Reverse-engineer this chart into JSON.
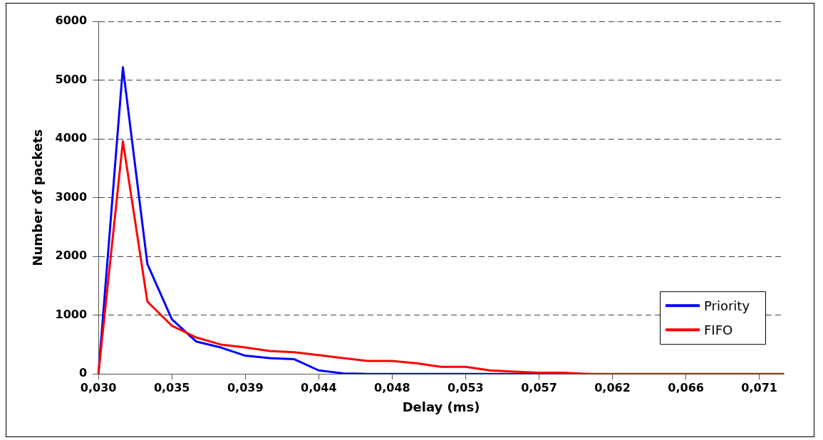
{
  "chart_data": {
    "type": "line",
    "xlabel": "Delay (ms)",
    "ylabel": "Number of packets",
    "categories": [
      "0,030",
      null,
      null,
      "0,035",
      null,
      null,
      "0,039",
      null,
      null,
      "0,044",
      null,
      null,
      "0,048",
      null,
      null,
      "0,053",
      null,
      null,
      "0,057",
      null,
      null,
      "0,062",
      null,
      null,
      "0,066",
      null,
      null,
      "0,071",
      null
    ],
    "series": [
      {
        "name": "Priority",
        "color": "#0000ff",
        "values": [
          0,
          5220,
          1870,
          930,
          550,
          450,
          310,
          270,
          250,
          60,
          10,
          0,
          0,
          0,
          0,
          0,
          0,
          0,
          0,
          0,
          null,
          null,
          null,
          null,
          null,
          null,
          null,
          null,
          null
        ]
      },
      {
        "name": "FIFO",
        "color": "#ff0000",
        "values": [
          0,
          3960,
          1230,
          820,
          620,
          500,
          450,
          390,
          370,
          320,
          270,
          220,
          220,
          180,
          120,
          120,
          60,
          40,
          20,
          20,
          0,
          0,
          0,
          0,
          0,
          0,
          0,
          0,
          0
        ]
      }
    ],
    "ylim": [
      0,
      6000
    ],
    "yticks": [
      0,
      1000,
      2000,
      3000,
      4000,
      5000,
      6000
    ],
    "grid": "y",
    "legend": "bottom right",
    "marker": "none",
    "line_style": "solid"
  }
}
